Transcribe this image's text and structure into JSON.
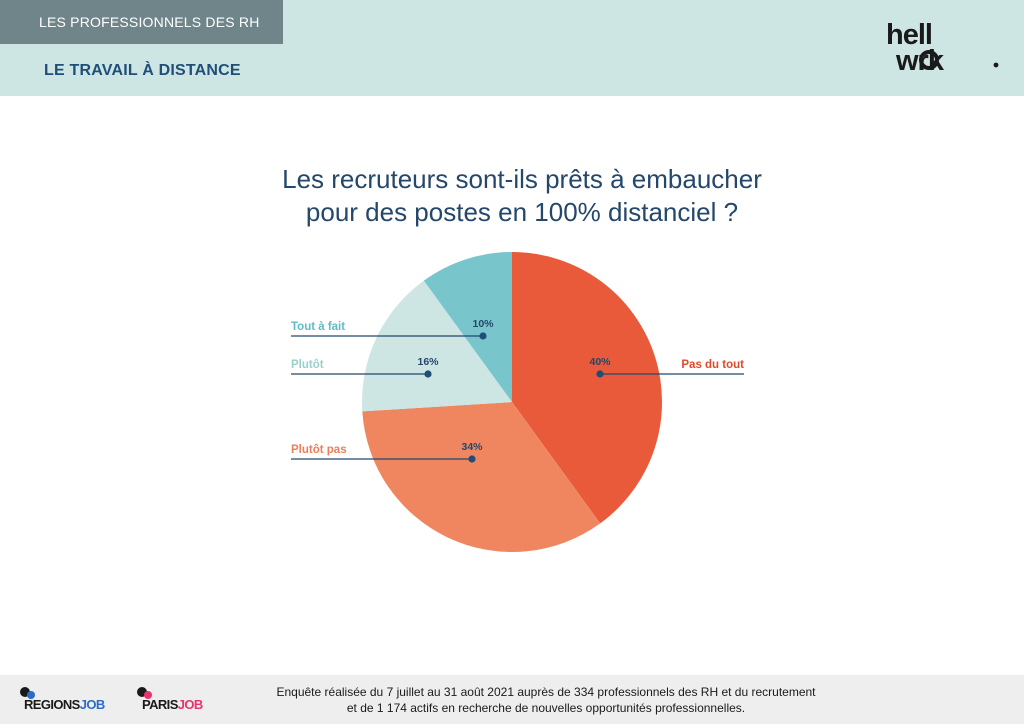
{
  "header": {
    "tag": "LES PROFESSIONNELS DES RH",
    "section": "LE TRAVAIL À DISTANCE",
    "logo_top": "hell",
    "logo_bottom": "wrk"
  },
  "chart_data": {
    "type": "pie",
    "title_line1": "Les recruteurs sont-ils prêts à embaucher",
    "title_line2": "pour des postes en 100% distanciel ?",
    "slices": [
      {
        "label": "Pas du tout",
        "value": 40,
        "display": "40%",
        "color": "#e85a3a",
        "label_color": "#e04a2a",
        "side": "right"
      },
      {
        "label": "Plutôt pas",
        "value": 34,
        "display": "34%",
        "color": "#ef8660",
        "label_color": "#ee7e58",
        "side": "left"
      },
      {
        "label": "Plutôt",
        "value": 16,
        "display": "16%",
        "color": "#cde6e3",
        "label_color": "#9ccfcb",
        "side": "left"
      },
      {
        "label": "Tout à fait",
        "value": 10,
        "display": "10%",
        "color": "#78c6cc",
        "label_color": "#5fbcc3",
        "side": "left"
      }
    ]
  },
  "footer": {
    "line1": "Enquête réalisée du 7 juillet au 31 août 2021 auprès de 334 professionnels des RH et du recrutement",
    "line2": "et de 1 174 actifs en recherche de nouvelles opportunités professionnelles.",
    "brand1_a": "REGIONS",
    "brand1_b": "JOB",
    "brand2_a": "PARIS",
    "brand2_b": "JOB"
  }
}
